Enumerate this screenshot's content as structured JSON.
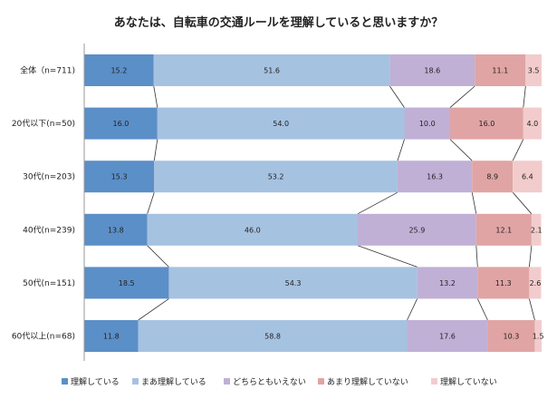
{
  "chart_data": {
    "type": "bar",
    "orientation": "horizontal",
    "stacked": "percent",
    "title": "あなたは、自転車の交通ルールを理解していると思いますか？",
    "categories": [
      "全体（n=711)",
      "20代以下(n=50)",
      "30代(n=203)",
      "40代(n=239)",
      "50代(n=151)",
      "60代以上(n=68)"
    ],
    "series": [
      {
        "name": "理解している",
        "color": "#5b8fc7",
        "values": [
          15.2,
          16.0,
          15.3,
          13.8,
          18.5,
          11.8
        ]
      },
      {
        "name": "まあ理解している",
        "color": "#a6c2e1",
        "values": [
          51.6,
          54.0,
          53.2,
          46.0,
          54.3,
          58.8
        ]
      },
      {
        "name": "どちらともいえない",
        "color": "#c0b0d6",
        "values": [
          18.6,
          10.0,
          16.3,
          25.9,
          13.2,
          17.6
        ]
      },
      {
        "name": "あまり理解していない",
        "color": "#e0a4a4",
        "values": [
          11.1,
          16.0,
          8.9,
          12.1,
          11.3,
          10.3
        ]
      },
      {
        "name": "理解していない",
        "color": "#f2cccc",
        "values": [
          3.5,
          4.0,
          6.4,
          2.1,
          2.6,
          1.5
        ]
      }
    ],
    "value_labels": [
      [
        "15.2",
        "51.6",
        "18.6",
        "11.1",
        "3.5"
      ],
      [
        "16.0",
        "54.0",
        "10.0",
        "16.0",
        "4.0"
      ],
      [
        "15.3",
        "53.2",
        "16.3",
        "8.9",
        "6.4"
      ],
      [
        "13.8",
        "46.0",
        "25.9",
        "12.1",
        "2.1"
      ],
      [
        "18.5",
        "54.3",
        "13.2",
        "11.3",
        "2.6"
      ],
      [
        "11.8",
        "58.8",
        "17.6",
        "10.3",
        "1.5"
      ]
    ],
    "xlim": [
      0,
      100
    ],
    "series_connector_lines": true,
    "grid": false,
    "legend_position": "bottom"
  }
}
